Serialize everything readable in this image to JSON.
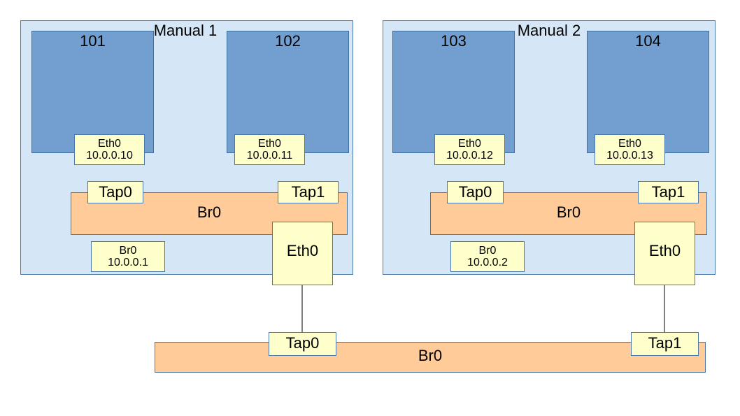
{
  "hosts": [
    {
      "title": "Manual 1",
      "vms": [
        {
          "name": "101",
          "nic_label": "Eth0",
          "nic_ip": "10.0.0.10"
        },
        {
          "name": "102",
          "nic_label": "Eth0",
          "nic_ip": "10.0.0.11"
        }
      ],
      "bridge": {
        "label": "Br0",
        "taps": [
          "Tap0",
          "Tap1"
        ],
        "iface_label": "Br0",
        "iface_ip": "10.0.0.1"
      },
      "uplink": "Eth0"
    },
    {
      "title": "Manual 2",
      "vms": [
        {
          "name": "103",
          "nic_label": "Eth0",
          "nic_ip": "10.0.0.12"
        },
        {
          "name": "104",
          "nic_label": "Eth0",
          "nic_ip": "10.0.0.13"
        }
      ],
      "bridge": {
        "label": "Br0",
        "taps": [
          "Tap0",
          "Tap1"
        ],
        "iface_label": "Br0",
        "iface_ip": "10.0.0.2"
      },
      "uplink": "Eth0"
    }
  ],
  "outer_bridge": {
    "label": "Br0",
    "taps": [
      "Tap0",
      "Tap1"
    ]
  },
  "colors": {
    "host_fill": "#d5e7f6",
    "vm_fill": "#739fd0",
    "interface_fill": "#ffffcc",
    "bridge_fill": "#ffcc99",
    "border": "#4a78a8"
  }
}
